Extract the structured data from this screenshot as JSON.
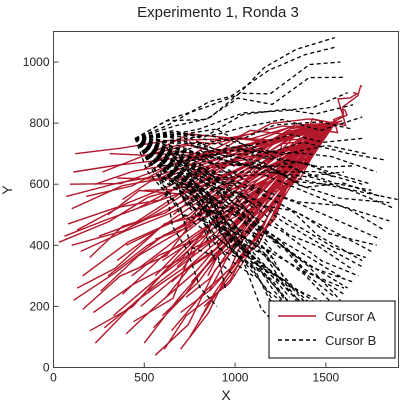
{
  "chart_data": {
    "type": "line",
    "title": "Experimento 1, Ronda 3",
    "xlabel": "X",
    "ylabel": "Y",
    "xlim": [
      0,
      1900
    ],
    "ylim": [
      0,
      1100
    ],
    "xticks": [
      0,
      500,
      1000,
      1500
    ],
    "yticks": [
      0,
      200,
      400,
      600,
      800,
      1000
    ],
    "grid": false,
    "legend_position": "bottom-right",
    "series": [
      {
        "name": "Cursor A",
        "color": "#b2182b",
        "dash": "solid",
        "hub": [
          1550,
          800
        ],
        "endpoints": [
          [
            30,
            410
          ],
          [
            80,
            470
          ],
          [
            100,
            520
          ],
          [
            70,
            560
          ],
          [
            90,
            600
          ],
          [
            110,
            640
          ],
          [
            120,
            700
          ],
          [
            60,
            430
          ],
          [
            100,
            400
          ],
          [
            130,
            450
          ],
          [
            150,
            380
          ],
          [
            200,
            360
          ],
          [
            250,
            430
          ],
          [
            300,
            500
          ],
          [
            180,
            560
          ],
          [
            230,
            600
          ],
          [
            270,
            640
          ],
          [
            310,
            700
          ],
          [
            350,
            620
          ],
          [
            380,
            550
          ],
          [
            160,
            300
          ],
          [
            130,
            260
          ],
          [
            110,
            220
          ],
          [
            160,
            190
          ],
          [
            220,
            180
          ],
          [
            260,
            250
          ],
          [
            300,
            300
          ],
          [
            350,
            350
          ],
          [
            400,
            400
          ],
          [
            420,
            460
          ],
          [
            460,
            520
          ],
          [
            500,
            580
          ],
          [
            200,
            120
          ],
          [
            230,
            80
          ],
          [
            280,
            130
          ],
          [
            330,
            170
          ],
          [
            380,
            240
          ],
          [
            430,
            300
          ],
          [
            480,
            330
          ],
          [
            520,
            400
          ],
          [
            560,
            420
          ],
          [
            400,
            110
          ],
          [
            440,
            150
          ],
          [
            480,
            200
          ],
          [
            520,
            250
          ],
          [
            560,
            300
          ],
          [
            600,
            350
          ],
          [
            500,
            80
          ],
          [
            550,
            130
          ],
          [
            600,
            170
          ],
          [
            620,
            230
          ],
          [
            650,
            280
          ],
          [
            680,
            330
          ],
          [
            560,
            40
          ],
          [
            610,
            60
          ],
          [
            650,
            120
          ],
          [
            700,
            180
          ],
          [
            730,
            230
          ],
          [
            760,
            280
          ],
          [
            700,
            60
          ],
          [
            750,
            100
          ],
          [
            800,
            150
          ],
          [
            830,
            200
          ],
          [
            860,
            250
          ],
          [
            660,
            500
          ],
          [
            700,
            560
          ],
          [
            740,
            600
          ],
          [
            780,
            640
          ],
          [
            850,
            300
          ],
          [
            880,
            350
          ],
          [
            900,
            400
          ],
          [
            950,
            450
          ],
          [
            500,
            650
          ],
          [
            560,
            700
          ],
          [
            620,
            720
          ],
          [
            1000,
            500
          ],
          [
            1050,
            550
          ],
          [
            1100,
            600
          ],
          [
            1150,
            650
          ],
          [
            1200,
            700
          ],
          [
            1300,
            750
          ],
          [
            1400,
            800
          ],
          [
            1650,
            900
          ],
          [
            1700,
            920
          ],
          [
            1600,
            830
          ]
        ]
      },
      {
        "name": "Cursor B",
        "color": "#000000",
        "dash": "4 3",
        "hub": [
          450,
          750
        ],
        "endpoints": [
          [
            1900,
            550
          ],
          [
            1880,
            520
          ],
          [
            1850,
            480
          ],
          [
            1820,
            450
          ],
          [
            1800,
            420
          ],
          [
            1780,
            400
          ],
          [
            1750,
            380
          ],
          [
            1720,
            360
          ],
          [
            1700,
            330
          ],
          [
            1680,
            300
          ],
          [
            1650,
            280
          ],
          [
            1620,
            260
          ],
          [
            1600,
            240
          ],
          [
            1580,
            220
          ],
          [
            1550,
            200
          ],
          [
            1520,
            180
          ],
          [
            1500,
            160
          ],
          [
            1480,
            150
          ],
          [
            1450,
            140
          ],
          [
            1420,
            130
          ],
          [
            1400,
            120
          ],
          [
            1380,
            140
          ],
          [
            1360,
            160
          ],
          [
            1340,
            180
          ],
          [
            1320,
            200
          ],
          [
            1300,
            230
          ],
          [
            1280,
            260
          ],
          [
            1260,
            290
          ],
          [
            1240,
            320
          ],
          [
            1220,
            350
          ],
          [
            1200,
            380
          ],
          [
            1180,
            410
          ],
          [
            1160,
            440
          ],
          [
            1140,
            470
          ],
          [
            1120,
            500
          ],
          [
            1100,
            520
          ],
          [
            1080,
            540
          ],
          [
            1060,
            560
          ],
          [
            1040,
            580
          ],
          [
            1020,
            600
          ],
          [
            1000,
            620
          ],
          [
            1500,
            600
          ],
          [
            1550,
            620
          ],
          [
            1600,
            640
          ],
          [
            1650,
            660
          ],
          [
            1700,
            600
          ],
          [
            1750,
            580
          ],
          [
            1800,
            560
          ],
          [
            1850,
            540
          ],
          [
            1600,
            290
          ],
          [
            1650,
            320
          ],
          [
            1700,
            350
          ],
          [
            1300,
            90
          ],
          [
            1350,
            110
          ],
          [
            1400,
            170
          ],
          [
            1450,
            190
          ],
          [
            1500,
            210
          ],
          [
            1550,
            230
          ],
          [
            1600,
            260
          ],
          [
            1100,
            300
          ],
          [
            1150,
            330
          ],
          [
            1200,
            360
          ],
          [
            1250,
            390
          ],
          [
            900,
            200
          ],
          [
            950,
            250
          ],
          [
            1000,
            300
          ],
          [
            1050,
            350
          ],
          [
            1750,
            600
          ],
          [
            1780,
            640
          ],
          [
            1820,
            680
          ],
          [
            1700,
            820
          ],
          [
            1650,
            860
          ],
          [
            1620,
            900
          ],
          [
            1600,
            950
          ],
          [
            1580,
            1000
          ],
          [
            1560,
            1050
          ],
          [
            1550,
            1080
          ],
          [
            1650,
            780
          ],
          [
            1700,
            750
          ],
          [
            1720,
            700
          ]
        ]
      }
    ]
  }
}
